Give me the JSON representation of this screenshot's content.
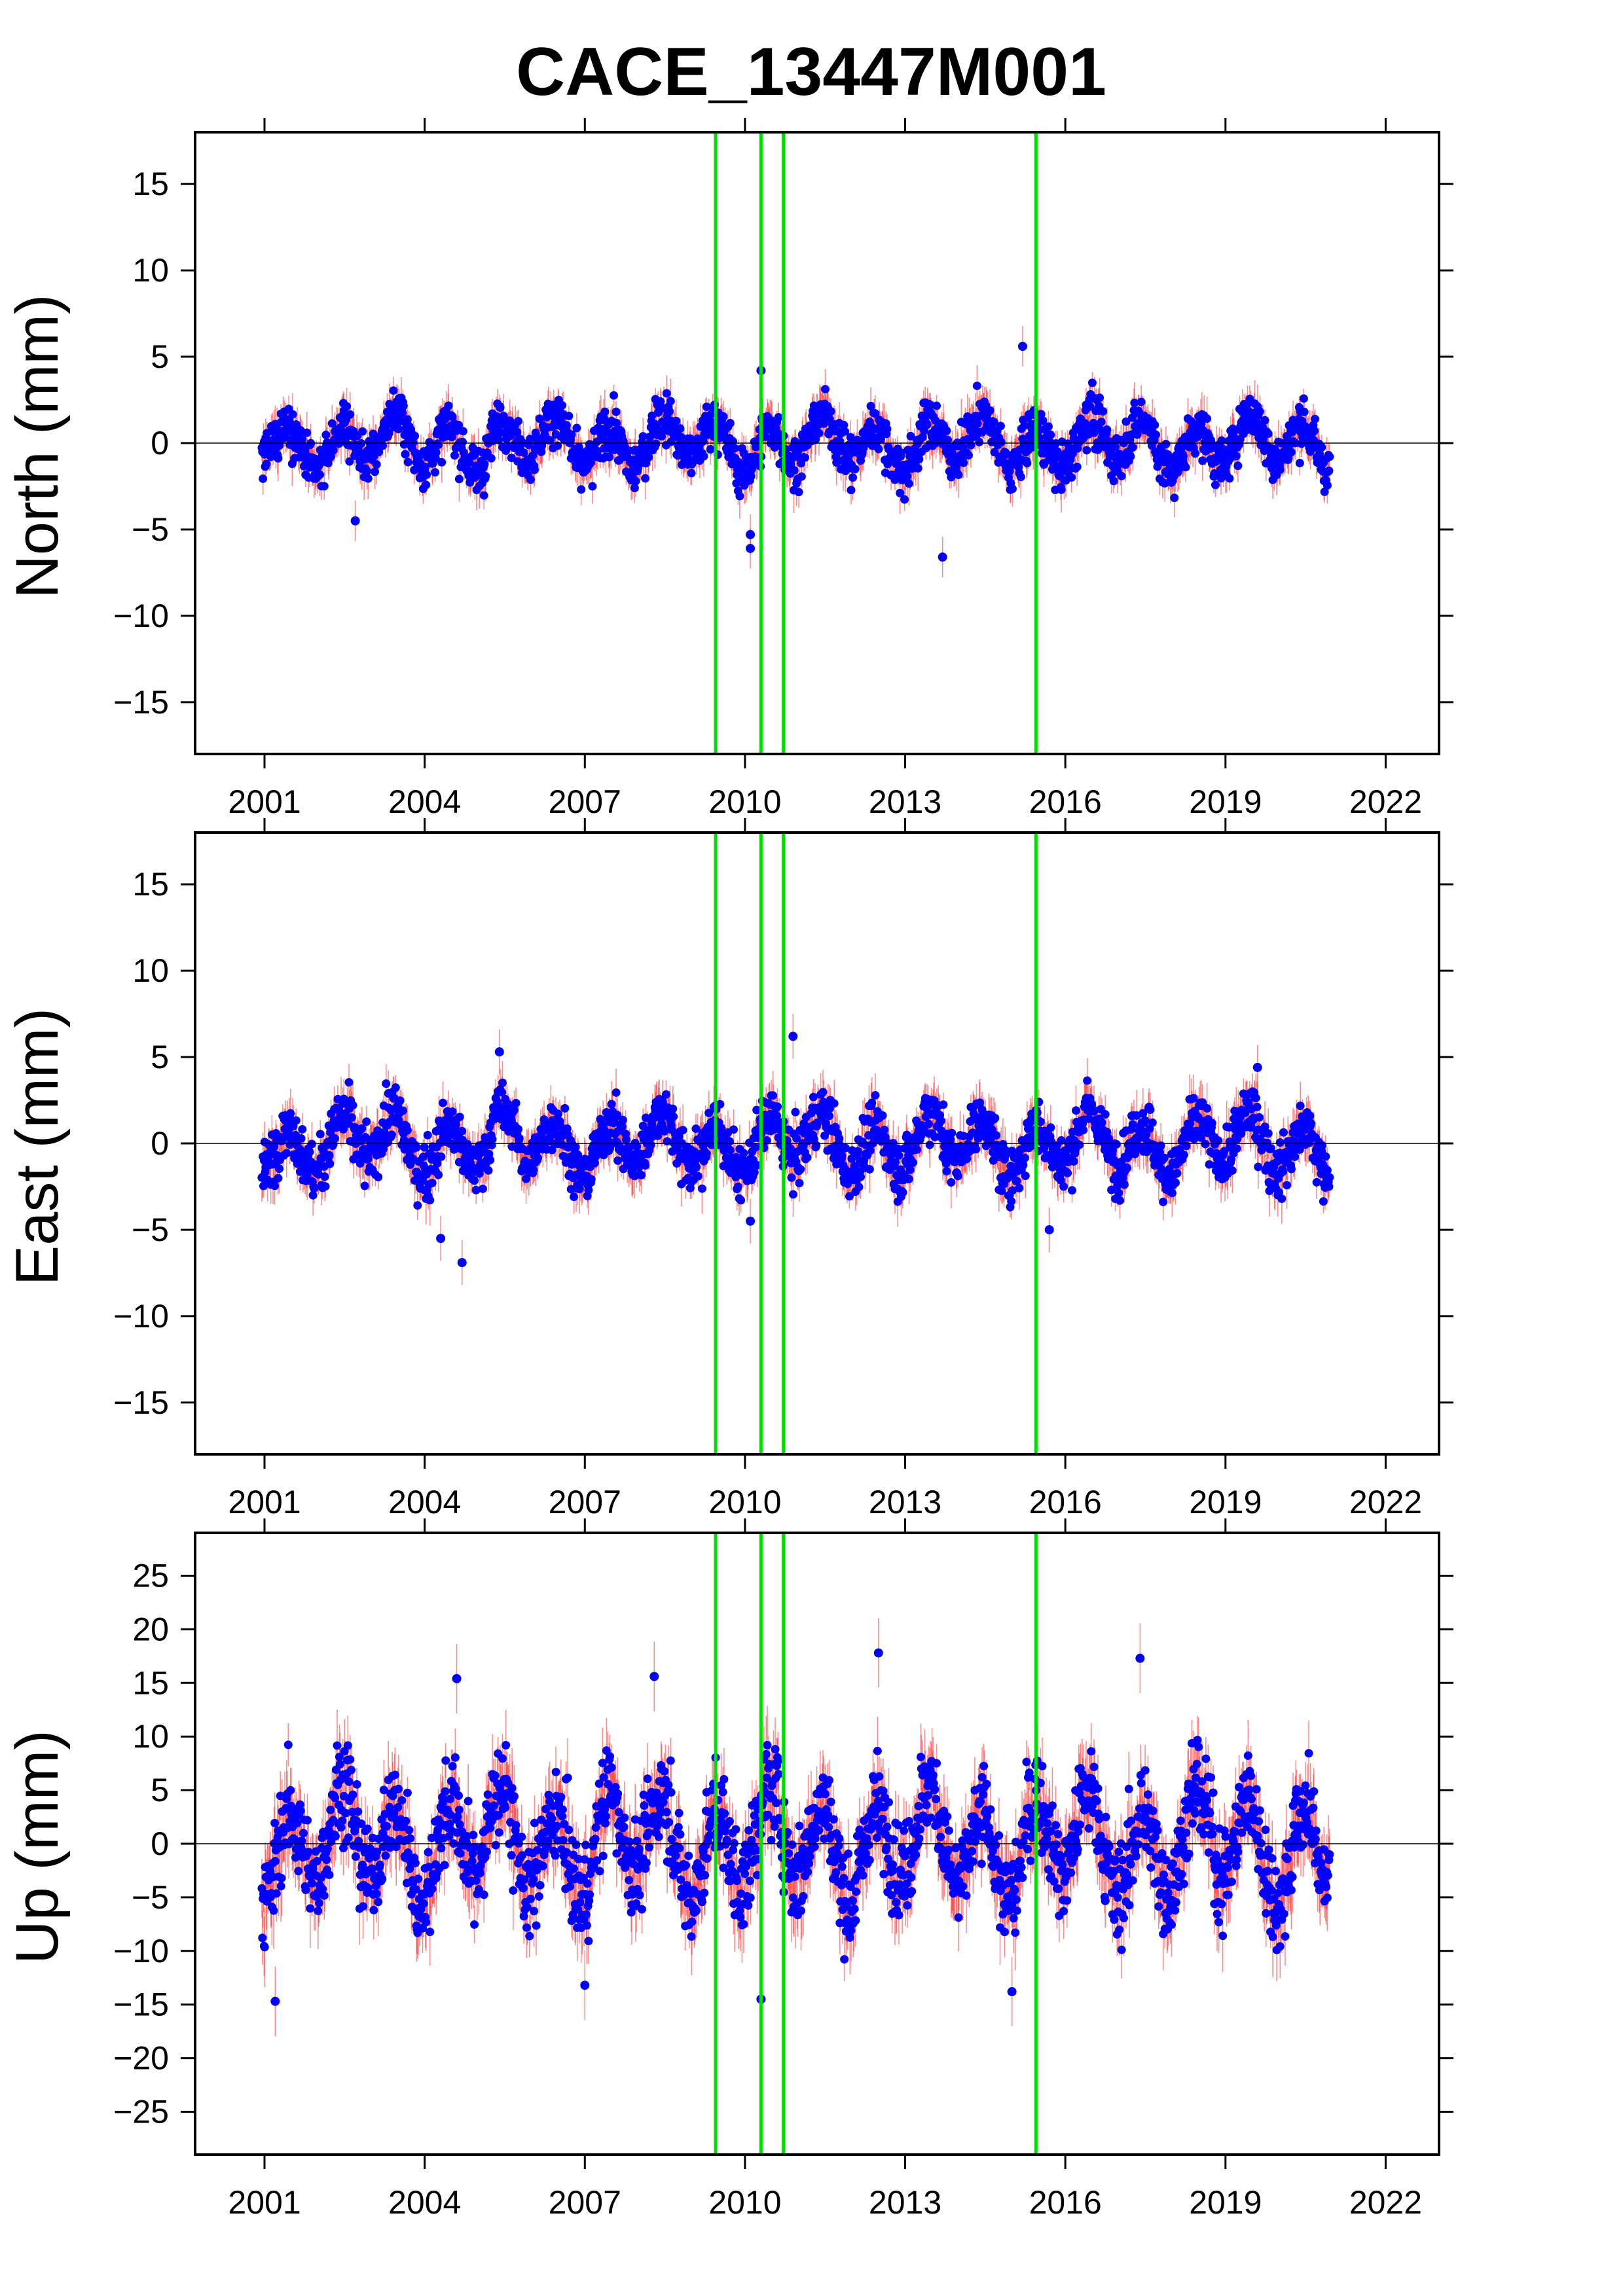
{
  "chart_data": [
    {
      "type": "scatter",
      "title": "CACE_13447M001",
      "ylabel": "North (mm)",
      "xlim": [
        1999.7,
        2023.0
      ],
      "ylim": [
        -18,
        18
      ],
      "yticks": [
        -15,
        -10,
        -5,
        0,
        5,
        10,
        15
      ],
      "xticks": [
        2001,
        2004,
        2007,
        2010,
        2013,
        2016,
        2019,
        2022
      ],
      "data_range": [
        2000.95,
        2020.95
      ],
      "typical_spread": 1.4,
      "typical_error": 0.9,
      "breaks": [
        2009.45,
        2010.3,
        2010.72,
        2015.45
      ],
      "outliers": [
        [
          2015.2,
          5.6
        ],
        [
          2013.7,
          -6.6
        ],
        [
          2010.1,
          -6.1
        ],
        [
          2010.1,
          -5.3
        ],
        [
          2010.3,
          4.2
        ],
        [
          2002.7,
          -4.5
        ]
      ],
      "grid": false
    },
    {
      "type": "scatter",
      "ylabel": "East (mm)",
      "xlim": [
        1999.7,
        2023.0
      ],
      "ylim": [
        -18,
        18
      ],
      "yticks": [
        -15,
        -10,
        -5,
        0,
        5,
        10,
        15
      ],
      "xticks": [
        2001,
        2004,
        2007,
        2010,
        2013,
        2016,
        2019,
        2022
      ],
      "data_range": [
        2000.95,
        2020.95
      ],
      "typical_spread": 1.6,
      "typical_error": 1.0,
      "breaks": [
        2009.45,
        2010.3,
        2010.72,
        2015.45
      ],
      "outliers": [
        [
          2005.4,
          5.3
        ],
        [
          2010.9,
          6.2
        ],
        [
          2019.6,
          4.4
        ],
        [
          2004.7,
          -6.9
        ],
        [
          2004.3,
          -5.5
        ],
        [
          2015.7,
          -5.0
        ],
        [
          2010.1,
          -4.5
        ]
      ],
      "grid": false
    },
    {
      "type": "scatter",
      "ylabel": "Up (mm)",
      "xlim": [
        1999.7,
        2023.0
      ],
      "ylim": [
        -29,
        29
      ],
      "yticks": [
        -25,
        -20,
        -15,
        -10,
        -5,
        0,
        5,
        10,
        15,
        20,
        25
      ],
      "xticks": [
        2001,
        2004,
        2007,
        2010,
        2013,
        2016,
        2019,
        2022
      ],
      "data_range": [
        2000.95,
        2020.95
      ],
      "typical_spread": 4.5,
      "typical_error": 2.5,
      "breaks": [
        2009.45,
        2010.3,
        2010.72,
        2015.45
      ],
      "outliers": [
        [
          2012.5,
          17.8
        ],
        [
          2017.4,
          17.3
        ],
        [
          2008.3,
          15.6
        ],
        [
          2004.6,
          15.4
        ],
        [
          2001.2,
          -14.7
        ],
        [
          2010.3,
          -14.5
        ],
        [
          2015.0,
          -13.8
        ],
        [
          2007.0,
          -13.2
        ]
      ],
      "grid": false
    }
  ],
  "colors": {
    "point": "#0000ff",
    "errorbar": "#ff0000",
    "break_line": "#00e000",
    "zero_line": "#000000",
    "axis": "#000000"
  }
}
